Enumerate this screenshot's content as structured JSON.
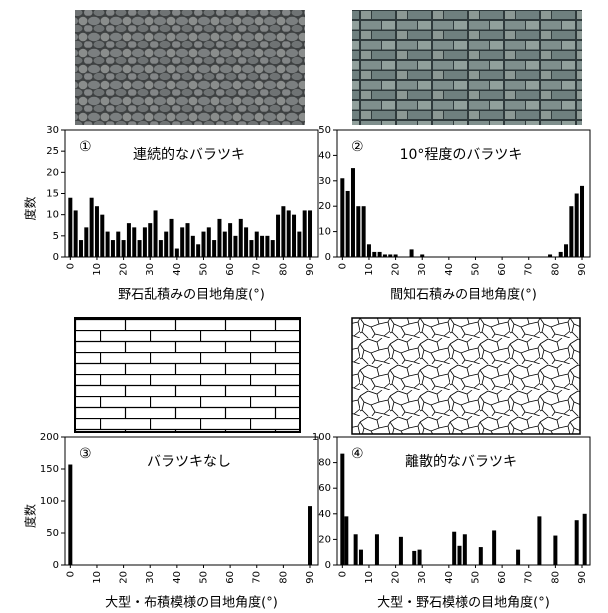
{
  "chart_data": [
    {
      "type": "bar",
      "number": "①",
      "annotation": "連続的なバラツキ",
      "xlabel": "野石乱積みの目地角度(°)",
      "ylabel": "度数",
      "color": "#000000",
      "x": [
        0,
        2,
        4,
        6,
        8,
        10,
        12,
        14,
        16,
        18,
        20,
        22,
        24,
        26,
        28,
        30,
        32,
        34,
        36,
        38,
        40,
        42,
        44,
        46,
        48,
        50,
        52,
        54,
        56,
        58,
        60,
        62,
        64,
        66,
        68,
        70,
        72,
        74,
        76,
        78,
        80,
        82,
        84,
        86,
        88,
        90
      ],
      "values": [
        14,
        11,
        4,
        7,
        14,
        12,
        10,
        6,
        4,
        6,
        4,
        8,
        7,
        4,
        7,
        8,
        11,
        4,
        6,
        9,
        2,
        7,
        8,
        5,
        3,
        6,
        7,
        4,
        9,
        6,
        8,
        5,
        9,
        7,
        4,
        6,
        5,
        5,
        4,
        10,
        12,
        11,
        10,
        6,
        11,
        11
      ],
      "xlim": [
        -2,
        93
      ],
      "xticks": [
        0,
        10,
        20,
        30,
        40,
        50,
        60,
        70,
        80,
        90
      ],
      "ylim": [
        0,
        30
      ],
      "yticks": [
        0,
        5,
        10,
        15,
        20,
        25,
        30
      ]
    },
    {
      "type": "bar",
      "number": "②",
      "annotation": "10°程度のバラツキ",
      "xlabel": "間知石積みの目地角度(°)",
      "color": "#000000",
      "x": [
        0,
        2,
        4,
        6,
        8,
        10,
        12,
        14,
        16,
        18,
        20,
        22,
        24,
        26,
        28,
        30,
        32,
        34,
        36,
        38,
        40,
        42,
        44,
        46,
        48,
        50,
        52,
        54,
        56,
        58,
        60,
        62,
        64,
        66,
        68,
        70,
        72,
        74,
        76,
        78,
        80,
        82,
        84,
        86,
        88,
        90
      ],
      "values": [
        31,
        26,
        35,
        20,
        20,
        5,
        2,
        2,
        1,
        1,
        1,
        0,
        0,
        3,
        0,
        1,
        0,
        0,
        0,
        0,
        0,
        0,
        0,
        0,
        0,
        0,
        0,
        0,
        0,
        0,
        0,
        0,
        0,
        0,
        0,
        0,
        0,
        0,
        0,
        1,
        0,
        2,
        5,
        20,
        25,
        28
      ],
      "xlim": [
        -2,
        93
      ],
      "xticks": [
        0,
        10,
        20,
        30,
        40,
        50,
        60,
        70,
        80,
        90
      ],
      "ylim": [
        0,
        50
      ],
      "yticks": [
        0,
        10,
        20,
        30,
        40,
        50
      ]
    },
    {
      "type": "bar",
      "number": "③",
      "annotation": "バラツキなし",
      "xlabel": "大型・布積模様の目地角度(°)",
      "ylabel": "度数",
      "color": "#000000",
      "x": [
        0,
        90
      ],
      "values": [
        157,
        92
      ],
      "xlim": [
        -2,
        93
      ],
      "xticks": [
        0,
        10,
        20,
        30,
        40,
        50,
        60,
        70,
        80,
        90
      ],
      "ylim": [
        0,
        200
      ],
      "yticks": [
        0,
        50,
        100,
        150,
        200
      ]
    },
    {
      "type": "bar",
      "number": "④",
      "annotation": "離散的なバラツキ",
      "xlabel": "大型・野石模様の目地角度(°)",
      "color": "#000000",
      "x": [
        0,
        1.5,
        5,
        7,
        13,
        22,
        27,
        29,
        42,
        44,
        46,
        52,
        57,
        66,
        74,
        80,
        88,
        91
      ],
      "values": [
        87,
        38,
        24,
        12,
        24,
        22,
        11,
        12,
        26,
        15,
        24,
        14,
        27,
        12,
        38,
        23,
        35,
        40
      ],
      "xlim": [
        -2,
        93
      ],
      "xticks": [
        0,
        10,
        20,
        30,
        40,
        50,
        60,
        70,
        80,
        90
      ],
      "ylim": [
        0,
        100
      ],
      "yticks": [
        0,
        20,
        40,
        60,
        80,
        100
      ]
    }
  ]
}
